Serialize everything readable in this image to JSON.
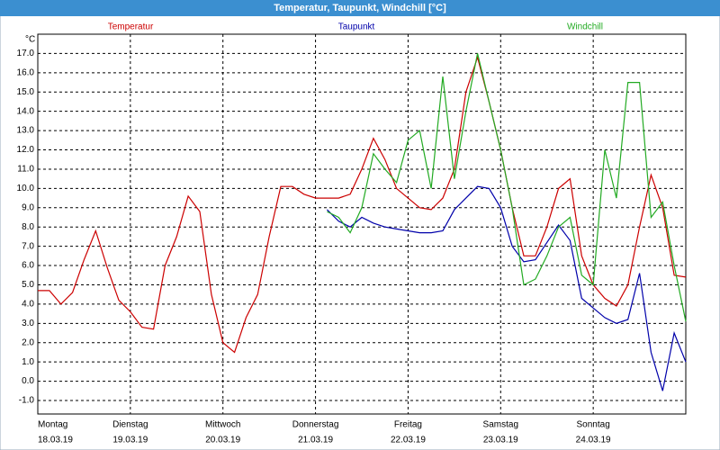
{
  "chart_data": {
    "type": "line",
    "title": "Temperatur, Taupunkt, Windchill [°C]",
    "y_unit": "°C",
    "x": [
      0,
      0.125,
      0.25,
      0.375,
      0.5,
      0.625,
      0.75,
      0.875,
      1,
      1.125,
      1.25,
      1.375,
      1.5,
      1.625,
      1.75,
      1.875,
      2,
      2.125,
      2.25,
      2.375,
      2.5,
      2.625,
      2.75,
      2.875,
      3,
      3.125,
      3.25,
      3.375,
      3.5,
      3.625,
      3.75,
      3.875,
      4,
      4.125,
      4.25,
      4.375,
      4.5,
      4.625,
      4.75,
      4.875,
      5,
      5.125,
      5.25,
      5.375,
      5.5,
      5.625,
      5.75,
      5.875,
      6,
      6.125,
      6.25,
      6.375,
      6.5,
      6.625,
      6.75,
      6.875,
      7
    ],
    "series": [
      {
        "name": "Temperatur",
        "color": "#cc0000",
        "values": [
          4.7,
          4.7,
          4.0,
          4.6,
          6.3,
          7.8,
          5.9,
          4.2,
          3.6,
          2.8,
          2.7,
          6.0,
          7.5,
          9.6,
          8.8,
          4.5,
          2.0,
          1.5,
          3.3,
          4.5,
          7.5,
          10.1,
          10.1,
          9.7,
          9.5,
          9.5,
          9.5,
          9.7,
          11.0,
          12.6,
          11.5,
          10.0,
          9.5,
          9.0,
          8.9,
          9.5,
          11.0,
          15.0,
          16.8,
          14.5,
          12.0,
          9.0,
          6.5,
          6.5,
          8.0,
          10.0,
          10.5,
          6.5,
          5.0,
          4.3,
          3.9,
          5.0,
          8.0,
          10.7,
          9.0,
          5.5,
          5.4
        ]
      },
      {
        "name": "Taupunkt",
        "color": "#0000aa",
        "values": [
          null,
          null,
          null,
          null,
          null,
          null,
          null,
          null,
          null,
          null,
          null,
          null,
          null,
          null,
          null,
          null,
          null,
          null,
          null,
          null,
          null,
          null,
          null,
          null,
          null,
          8.9,
          8.3,
          8.0,
          8.5,
          8.2,
          8.0,
          7.9,
          7.8,
          7.7,
          7.7,
          7.8,
          8.9,
          9.5,
          10.1,
          10.0,
          9.0,
          7.0,
          6.2,
          6.3,
          7.2,
          8.1,
          7.3,
          4.3,
          3.8,
          3.3,
          3.0,
          3.2,
          5.6,
          1.5,
          -0.5,
          2.5,
          1.0
        ]
      },
      {
        "name": "Windchill",
        "color": "#22aa22",
        "values": [
          null,
          null,
          null,
          null,
          null,
          null,
          null,
          null,
          null,
          null,
          null,
          null,
          null,
          null,
          null,
          null,
          null,
          null,
          null,
          null,
          null,
          null,
          null,
          null,
          null,
          8.8,
          8.5,
          7.7,
          9.0,
          11.8,
          11.0,
          10.3,
          12.5,
          13.0,
          10.0,
          15.8,
          10.5,
          14.0,
          17.0,
          14.5,
          12.0,
          9.0,
          5.0,
          5.3,
          6.5,
          8.0,
          8.5,
          5.5,
          5.0,
          12.0,
          9.5,
          15.5,
          15.5,
          8.5,
          9.3,
          6.0,
          3.1
        ]
      }
    ],
    "xlim": [
      0,
      7
    ],
    "xticks": [
      {
        "value": 0,
        "label": "Montag"
      },
      {
        "value": 1,
        "label": "Dienstag"
      },
      {
        "value": 2,
        "label": "Mittwoch"
      },
      {
        "value": 3,
        "label": "Donnerstag"
      },
      {
        "value": 4,
        "label": "Freitag"
      },
      {
        "value": 5,
        "label": "Samstag"
      },
      {
        "value": 6,
        "label": "Sonntag"
      }
    ],
    "dates": [
      "18.03.19",
      "19.03.19",
      "20.03.19",
      "21.03.19",
      "22.03.19",
      "23.03.19",
      "24.03.19"
    ],
    "ylim": [
      -1.7,
      18.0
    ],
    "yticks": [
      {
        "value": -1,
        "label": "-1.0"
      },
      {
        "value": 0,
        "label": "0.0"
      },
      {
        "value": 1,
        "label": "1.0"
      },
      {
        "value": 2,
        "label": "2.0"
      },
      {
        "value": 3,
        "label": "3.0"
      },
      {
        "value": 4,
        "label": "4.0"
      },
      {
        "value": 5,
        "label": "5.0"
      },
      {
        "value": 6,
        "label": "6.0"
      },
      {
        "value": 7,
        "label": "7.0"
      },
      {
        "value": 8,
        "label": "8.0"
      },
      {
        "value": 9,
        "label": "9.0"
      },
      {
        "value": 10,
        "label": "10.0"
      },
      {
        "value": 11,
        "label": "11.0"
      },
      {
        "value": 12,
        "label": "12.0"
      },
      {
        "value": 13,
        "label": "13.0"
      },
      {
        "value": 14,
        "label": "14.0"
      },
      {
        "value": 15,
        "label": "15.0"
      },
      {
        "value": 16,
        "label": "16.0"
      },
      {
        "value": 17,
        "label": "17.0"
      }
    ],
    "grid": true
  }
}
